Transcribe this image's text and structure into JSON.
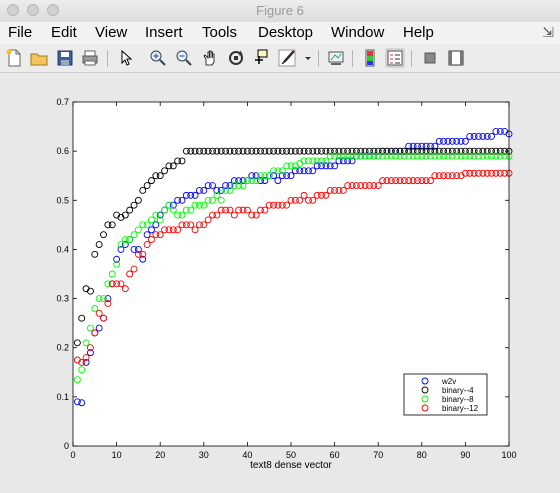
{
  "window": {
    "title": "Figure 6"
  },
  "menu": [
    "File",
    "Edit",
    "View",
    "Insert",
    "Tools",
    "Desktop",
    "Window",
    "Help"
  ],
  "toolbar": {
    "buttons": [
      "new-figure-icon",
      "open-file-icon",
      "save-icon",
      "print-icon",
      "edit-plot-arrow-icon",
      "zoom-in-icon",
      "zoom-out-icon",
      "pan-hand-icon",
      "rotate-3d-icon",
      "data-cursor-icon",
      "brush-icon",
      "brush-dropdown-icon",
      "link-plot-icon",
      "insert-colorbar-icon",
      "insert-legend-icon",
      "hide-plot-tools-icon",
      "show-plot-tools-icon"
    ]
  },
  "chart_data": {
    "type": "scatter",
    "xlabel": "text8 dense vector",
    "ylabel": "",
    "title": "",
    "xlim": [
      0,
      100
    ],
    "ylim": [
      0,
      0.7
    ],
    "xticks": [
      "0",
      "10",
      "20",
      "30",
      "40",
      "50",
      "60",
      "70",
      "80",
      "90",
      "100"
    ],
    "yticks": [
      "0",
      "0.1",
      "0.2",
      "0.3",
      "0.4",
      "0.5",
      "0.6",
      "0.7"
    ],
    "grid": false,
    "legend": "bottom-right",
    "marker": "circle-open",
    "series": [
      {
        "name": "w2v",
        "color": "#0000ff",
        "x": [
          1,
          2,
          3,
          4,
          5,
          6,
          7,
          8,
          9,
          10,
          11,
          12,
          13,
          14,
          15,
          16,
          17,
          18,
          19,
          20,
          21,
          22,
          23,
          24,
          25,
          26,
          27,
          28,
          29,
          30,
          31,
          32,
          33,
          34,
          35,
          36,
          37,
          38,
          39,
          40,
          41,
          42,
          43,
          44,
          45,
          46,
          47,
          48,
          49,
          50,
          51,
          52,
          53,
          54,
          55,
          56,
          57,
          58,
          59,
          60,
          61,
          62,
          63,
          64,
          65,
          66,
          67,
          68,
          69,
          70,
          71,
          72,
          73,
          74,
          75,
          76,
          77,
          78,
          79,
          80,
          81,
          82,
          83,
          84,
          85,
          86,
          87,
          88,
          89,
          90,
          91,
          92,
          93,
          94,
          95,
          96,
          97,
          98,
          99,
          100
        ],
        "y": [
          0.09,
          0.088,
          0.17,
          0.19,
          0.23,
          0.24,
          0.26,
          0.3,
          0.33,
          0.38,
          0.4,
          0.41,
          0.42,
          0.4,
          0.4,
          0.38,
          0.43,
          0.44,
          0.45,
          0.47,
          0.48,
          0.49,
          0.49,
          0.5,
          0.5,
          0.51,
          0.51,
          0.51,
          0.52,
          0.52,
          0.53,
          0.53,
          0.52,
          0.52,
          0.53,
          0.53,
          0.54,
          0.54,
          0.54,
          0.54,
          0.55,
          0.55,
          0.54,
          0.54,
          0.55,
          0.55,
          0.54,
          0.55,
          0.55,
          0.55,
          0.56,
          0.56,
          0.56,
          0.56,
          0.56,
          0.57,
          0.57,
          0.57,
          0.57,
          0.57,
          0.58,
          0.58,
          0.58,
          0.58,
          0.59,
          0.59,
          0.59,
          0.59,
          0.59,
          0.59,
          0.6,
          0.6,
          0.6,
          0.6,
          0.6,
          0.6,
          0.61,
          0.61,
          0.61,
          0.61,
          0.61,
          0.61,
          0.61,
          0.62,
          0.62,
          0.62,
          0.62,
          0.62,
          0.62,
          0.62,
          0.63,
          0.63,
          0.63,
          0.63,
          0.63,
          0.63,
          0.64,
          0.64,
          0.64,
          0.635
        ]
      },
      {
        "name": "binary--4",
        "color": "#000000",
        "x": [
          1,
          2,
          3,
          4,
          5,
          6,
          7,
          8,
          9,
          10,
          11,
          12,
          13,
          14,
          15,
          16,
          17,
          18,
          19,
          20,
          21,
          22,
          23,
          24,
          25,
          26,
          27,
          28,
          29,
          30,
          31,
          32,
          33,
          34,
          35,
          36,
          37,
          38,
          39,
          40,
          41,
          42,
          43,
          44,
          45,
          46,
          47,
          48,
          49,
          50,
          51,
          52,
          53,
          54,
          55,
          56,
          57,
          58,
          59,
          60,
          61,
          62,
          63,
          64,
          65,
          66,
          67,
          68,
          69,
          70,
          71,
          72,
          73,
          74,
          75,
          76,
          77,
          78,
          79,
          80,
          81,
          82,
          83,
          84,
          85,
          86,
          87,
          88,
          89,
          90,
          91,
          92,
          93,
          94,
          95,
          96,
          97,
          98,
          99,
          100
        ],
        "y": [
          0.21,
          0.26,
          0.32,
          0.315,
          0.39,
          0.41,
          0.43,
          0.45,
          0.45,
          0.47,
          0.465,
          0.47,
          0.48,
          0.49,
          0.5,
          0.52,
          0.53,
          0.54,
          0.55,
          0.55,
          0.56,
          0.57,
          0.57,
          0.58,
          0.58,
          0.6,
          0.6,
          0.6,
          0.6,
          0.6,
          0.6,
          0.6,
          0.6,
          0.6,
          0.6,
          0.6,
          0.6,
          0.6,
          0.6,
          0.6,
          0.6,
          0.6,
          0.6,
          0.6,
          0.6,
          0.6,
          0.6,
          0.6,
          0.6,
          0.6,
          0.6,
          0.6,
          0.6,
          0.6,
          0.6,
          0.6,
          0.6,
          0.6,
          0.6,
          0.6,
          0.6,
          0.6,
          0.6,
          0.6,
          0.6,
          0.6,
          0.6,
          0.6,
          0.6,
          0.6,
          0.6,
          0.6,
          0.6,
          0.6,
          0.6,
          0.6,
          0.6,
          0.6,
          0.6,
          0.6,
          0.6,
          0.6,
          0.6,
          0.6,
          0.6,
          0.6,
          0.6,
          0.6,
          0.6,
          0.6,
          0.6,
          0.6,
          0.6,
          0.6,
          0.6,
          0.6,
          0.6,
          0.6,
          0.6,
          0.6
        ]
      },
      {
        "name": "binary--8",
        "color": "#00ff00",
        "x": [
          1,
          2,
          3,
          4,
          5,
          6,
          7,
          8,
          9,
          10,
          11,
          12,
          13,
          14,
          15,
          16,
          17,
          18,
          19,
          20,
          21,
          22,
          23,
          24,
          25,
          26,
          27,
          28,
          29,
          30,
          31,
          32,
          33,
          34,
          35,
          36,
          37,
          38,
          39,
          40,
          41,
          42,
          43,
          44,
          45,
          46,
          47,
          48,
          49,
          50,
          51,
          52,
          53,
          54,
          55,
          56,
          57,
          58,
          59,
          60,
          61,
          62,
          63,
          64,
          65,
          66,
          67,
          68,
          69,
          70,
          71,
          72,
          73,
          74,
          75,
          76,
          77,
          78,
          79,
          80,
          81,
          82,
          83,
          84,
          85,
          86,
          87,
          88,
          89,
          90,
          91,
          92,
          93,
          94,
          95,
          96,
          97,
          98,
          99,
          100
        ],
        "y": [
          0.135,
          0.155,
          0.21,
          0.24,
          0.28,
          0.3,
          0.3,
          0.33,
          0.35,
          0.37,
          0.41,
          0.42,
          0.42,
          0.43,
          0.44,
          0.45,
          0.45,
          0.46,
          0.47,
          0.46,
          0.48,
          0.49,
          0.48,
          0.47,
          0.47,
          0.48,
          0.48,
          0.49,
          0.49,
          0.49,
          0.5,
          0.5,
          0.51,
          0.5,
          0.52,
          0.52,
          0.53,
          0.53,
          0.53,
          0.54,
          0.54,
          0.54,
          0.55,
          0.55,
          0.55,
          0.56,
          0.56,
          0.56,
          0.57,
          0.57,
          0.57,
          0.575,
          0.58,
          0.58,
          0.58,
          0.58,
          0.58,
          0.58,
          0.59,
          0.59,
          0.59,
          0.59,
          0.59,
          0.59,
          0.59,
          0.59,
          0.59,
          0.59,
          0.59,
          0.59,
          0.59,
          0.59,
          0.59,
          0.59,
          0.59,
          0.59,
          0.59,
          0.59,
          0.59,
          0.59,
          0.59,
          0.59,
          0.59,
          0.59,
          0.59,
          0.59,
          0.59,
          0.59,
          0.59,
          0.59,
          0.59,
          0.59,
          0.59,
          0.59,
          0.59,
          0.59,
          0.59,
          0.59,
          0.59,
          0.59
        ]
      },
      {
        "name": "binary--12",
        "color": "#ff0000",
        "x": [
          1,
          2,
          3,
          4,
          5,
          6,
          7,
          8,
          9,
          10,
          11,
          12,
          13,
          14,
          15,
          16,
          17,
          18,
          19,
          20,
          21,
          22,
          23,
          24,
          25,
          26,
          27,
          28,
          29,
          30,
          31,
          32,
          33,
          34,
          35,
          36,
          37,
          38,
          39,
          40,
          41,
          42,
          43,
          44,
          45,
          46,
          47,
          48,
          49,
          50,
          51,
          52,
          53,
          54,
          55,
          56,
          57,
          58,
          59,
          60,
          61,
          62,
          63,
          64,
          65,
          66,
          67,
          68,
          69,
          70,
          71,
          72,
          73,
          74,
          75,
          76,
          77,
          78,
          79,
          80,
          81,
          82,
          83,
          84,
          85,
          86,
          87,
          88,
          89,
          90,
          91,
          92,
          93,
          94,
          95,
          96,
          97,
          98,
          99,
          100
        ],
        "y": [
          0.175,
          0.17,
          0.18,
          0.2,
          0.23,
          0.27,
          0.26,
          0.29,
          0.33,
          0.33,
          0.33,
          0.32,
          0.35,
          0.36,
          0.39,
          0.39,
          0.41,
          0.42,
          0.43,
          0.43,
          0.44,
          0.44,
          0.44,
          0.44,
          0.45,
          0.45,
          0.45,
          0.44,
          0.45,
          0.45,
          0.46,
          0.47,
          0.47,
          0.48,
          0.48,
          0.48,
          0.47,
          0.48,
          0.48,
          0.48,
          0.47,
          0.47,
          0.48,
          0.48,
          0.49,
          0.49,
          0.49,
          0.49,
          0.49,
          0.5,
          0.5,
          0.5,
          0.51,
          0.5,
          0.5,
          0.51,
          0.51,
          0.51,
          0.52,
          0.52,
          0.52,
          0.52,
          0.53,
          0.53,
          0.53,
          0.53,
          0.53,
          0.53,
          0.53,
          0.53,
          0.54,
          0.54,
          0.54,
          0.54,
          0.54,
          0.54,
          0.54,
          0.54,
          0.54,
          0.54,
          0.54,
          0.54,
          0.55,
          0.55,
          0.55,
          0.55,
          0.55,
          0.55,
          0.55,
          0.555,
          0.555,
          0.555,
          0.555,
          0.555,
          0.555,
          0.555,
          0.555,
          0.555,
          0.555,
          0.555
        ]
      }
    ]
  }
}
